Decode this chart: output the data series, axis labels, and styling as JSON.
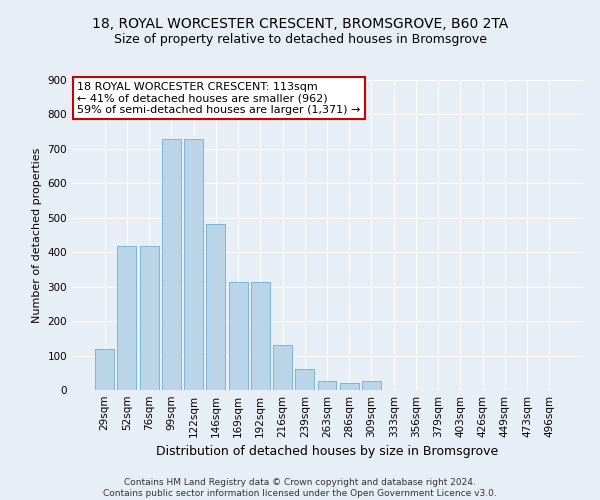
{
  "title": "18, ROYAL WORCESTER CRESCENT, BROMSGROVE, B60 2TA",
  "subtitle": "Size of property relative to detached houses in Bromsgrove",
  "xlabel": "Distribution of detached houses by size in Bromsgrove",
  "ylabel": "Number of detached properties",
  "footer_line1": "Contains HM Land Registry data © Crown copyright and database right 2024.",
  "footer_line2": "Contains public sector information licensed under the Open Government Licence v3.0.",
  "annotation_line1": "18 ROYAL WORCESTER CRESCENT: 113sqm",
  "annotation_line2": "← 41% of detached houses are smaller (962)",
  "annotation_line3": "59% of semi-detached houses are larger (1,371) →",
  "bar_labels": [
    "29sqm",
    "52sqm",
    "76sqm",
    "99sqm",
    "122sqm",
    "146sqm",
    "169sqm",
    "192sqm",
    "216sqm",
    "239sqm",
    "263sqm",
    "286sqm",
    "309sqm",
    "333sqm",
    "356sqm",
    "379sqm",
    "403sqm",
    "426sqm",
    "449sqm",
    "473sqm",
    "496sqm"
  ],
  "bar_values": [
    120,
    418,
    418,
    730,
    730,
    482,
    315,
    315,
    130,
    62,
    25,
    20,
    25,
    0,
    0,
    0,
    0,
    0,
    0,
    0,
    0
  ],
  "bar_color": "#bad4e8",
  "bar_edge_color": "#6aafd4",
  "ylim": [
    0,
    900
  ],
  "yticks": [
    0,
    100,
    200,
    300,
    400,
    500,
    600,
    700,
    800,
    900
  ],
  "background_color": "#e8eef5",
  "plot_bg_color": "#e8eef5",
  "annotation_box_color": "#ffffff",
  "annotation_box_edge": "#cc0000",
  "title_fontsize": 10,
  "subtitle_fontsize": 9,
  "ylabel_fontsize": 8,
  "xlabel_fontsize": 9,
  "tick_fontsize": 7.5,
  "footer_fontsize": 6.5,
  "annotation_fontsize": 8
}
